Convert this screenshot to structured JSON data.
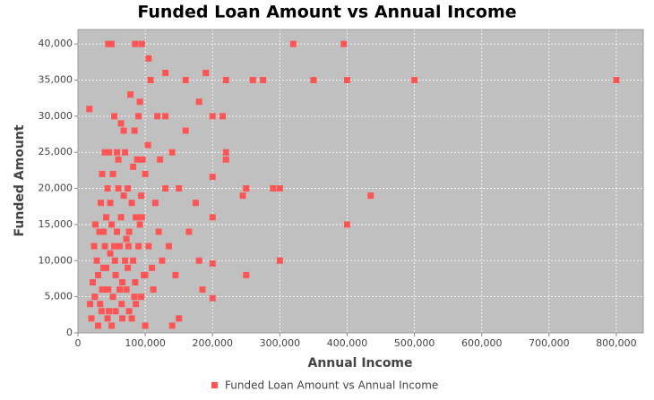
{
  "chart_data": {
    "type": "scatter",
    "title": "Funded Loan Amount vs Annual Income",
    "x_label": "Annual Income",
    "y_label": "Funded Amount",
    "xlim": [
      0,
      840000
    ],
    "ylim": [
      0,
      42000
    ],
    "xticks": [
      0,
      {
        "value": 100000,
        "label": "100,000"
      },
      {
        "value": 200000,
        "label": "200,000"
      },
      {
        "value": 300000,
        "label": "300,000"
      },
      {
        "value": 400000,
        "label": "400,000"
      },
      {
        "value": 500000,
        "label": "500,000"
      },
      {
        "value": 600000,
        "label": "600,000"
      },
      {
        "value": 700000,
        "label": "700,000"
      },
      {
        "value": 800000,
        "label": "800,000"
      }
    ],
    "yticks": [
      0,
      {
        "value": 5000,
        "label": "5,000"
      },
      {
        "value": 10000,
        "label": "10,000"
      },
      {
        "value": 15000,
        "label": "15,000"
      },
      {
        "value": 20000,
        "label": "20,000"
      },
      {
        "value": 25000,
        "label": "25,000"
      },
      {
        "value": 30000,
        "label": "30,000"
      },
      {
        "value": 35000,
        "label": "35,000"
      },
      {
        "value": 40000,
        "label": "40,000"
      }
    ],
    "grid": true,
    "legend": "bottom",
    "series": [
      {
        "name": "Funded Loan Amount vs Annual Income",
        "color": "#ff5555",
        "x": [
          45000,
          50000,
          85000,
          95000,
          320000,
          395000,
          800000,
          500000,
          400000,
          350000,
          275000,
          260000,
          220000,
          17000,
          435000,
          400000,
          300000,
          250000,
          300000,
          290000,
          250000,
          245000,
          220000,
          220000,
          215000,
          200000,
          200000,
          200000,
          200000,
          200000,
          185000,
          150000,
          140000,
          100000,
          190000,
          130000,
          105000,
          130000,
          160000,
          180000,
          20000,
          25000,
          30000,
          35000,
          40000,
          45000,
          50000,
          55000,
          60000,
          65000,
          70000,
          75000,
          80000,
          85000,
          90000,
          95000,
          100000,
          110000,
          120000,
          130000,
          22000,
          28000,
          33000,
          38000,
          42000,
          48000,
          52000,
          58000,
          62000,
          68000,
          72000,
          78000,
          82000,
          88000,
          92000,
          98000,
          105000,
          115000,
          125000,
          140000,
          18000,
          24000,
          32000,
          36000,
          44000,
          46000,
          54000,
          56000,
          64000,
          66000,
          74000,
          76000,
          84000,
          86000,
          94000,
          96000,
          108000,
          112000,
          122000,
          150000,
          26000,
          34000,
          40000,
          50000,
          60000,
          70000,
          80000,
          90000,
          100000,
          160000,
          30000,
          38000,
          44000,
          52000,
          58000,
          66000,
          76000,
          86000,
          118000,
          175000,
          42000,
          48000,
          56000,
          62000,
          68000,
          72000,
          82000,
          92000,
          135000,
          165000,
          36000,
          46000,
          54000,
          64000,
          74000,
          84000,
          94000,
          104000,
          145000,
          180000
        ],
        "values": [
          40000,
          40000,
          40000,
          40000,
          40000,
          40000,
          35000,
          35000,
          35000,
          35000,
          35000,
          35000,
          35000,
          31000,
          19000,
          15000,
          10000,
          8000,
          20000,
          20000,
          20000,
          19000,
          25000,
          24000,
          30000,
          30000,
          21600,
          16000,
          9600,
          4800,
          6000,
          2000,
          1000,
          1000,
          36000,
          36000,
          38000,
          30000,
          35000,
          32000,
          2000,
          5000,
          8000,
          3000,
          12000,
          6000,
          15000,
          10000,
          20000,
          4000,
          25000,
          12000,
          18000,
          7000,
          30000,
          16000,
          22000,
          9000,
          14000,
          20000,
          7000,
          10000,
          4000,
          14000,
          9000,
          18000,
          5000,
          25000,
          12000,
          28000,
          6000,
          33000,
          10000,
          24000,
          15000,
          8000,
          12000,
          18000,
          10000,
          25000,
          4000,
          12000,
          14000,
          6000,
          20000,
          3000,
          30000,
          8000,
          16000,
          2000,
          20000,
          3000,
          28000,
          16000,
          5000,
          24000,
          35000,
          6000,
          24000,
          20000,
          15000,
          18000,
          25000,
          1000,
          24000,
          10000,
          2000,
          12000,
          8000,
          28000,
          1000,
          9000,
          2000,
          22000,
          14000,
          7000,
          14000,
          4000,
          30000,
          18000,
          16000,
          11000,
          3000,
          6000,
          19000,
          13000,
          23000,
          32000,
          12000,
          14000,
          22000,
          25000,
          12000,
          29000,
          9000,
          5000,
          19000,
          26000,
          8000,
          10000
        ]
      }
    ]
  }
}
